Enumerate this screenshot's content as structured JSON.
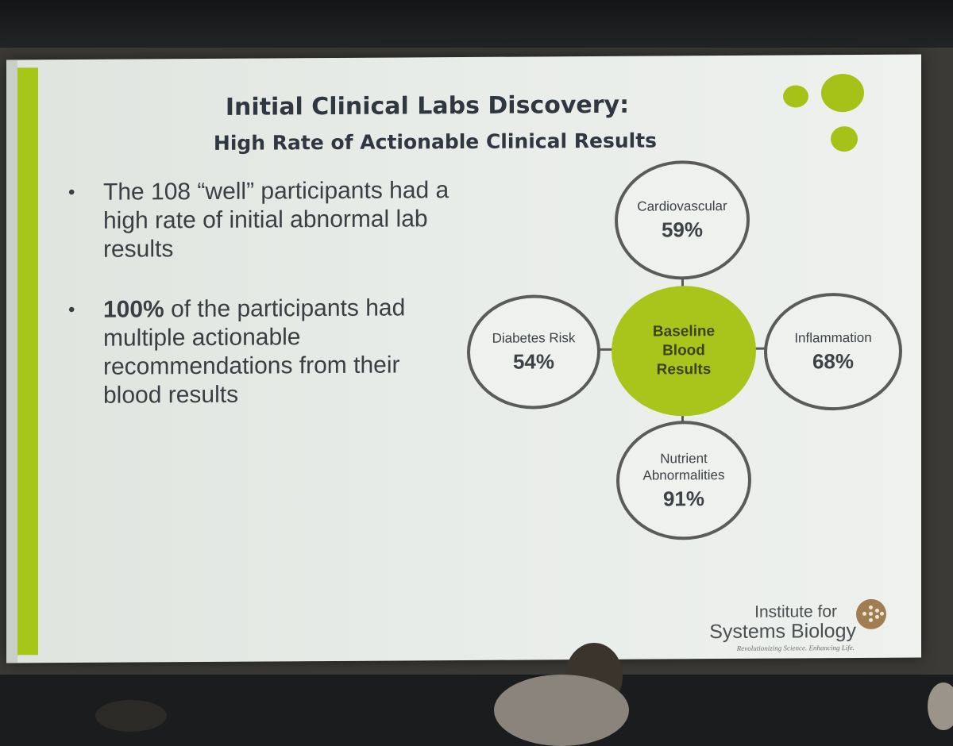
{
  "slide": {
    "title": "Initial Clinical Labs Discovery:",
    "subtitle": "High Rate of Actionable Clinical Results",
    "bullets": [
      {
        "text": "The 108 “well” participants had a high rate of initial abnormal lab results"
      },
      {
        "bold": "100%",
        "text": " of the participants had multiple actionable recommendations from their blood results"
      }
    ],
    "bullet_char": "•",
    "diagram": {
      "center": "Baseline Blood Results",
      "nodes": [
        {
          "label": "Cardiovascular",
          "value": "59%"
        },
        {
          "label": "Diabetes Risk",
          "value": "54%"
        },
        {
          "label": "Inflammation",
          "value": "68%"
        },
        {
          "label": "Nutrient Abnormalities",
          "value": "91%"
        }
      ]
    },
    "logo": {
      "line1": "Institute for",
      "line2": "Systems Biology",
      "tagline": "Revolutionizing Science. Enhancing Life."
    }
  },
  "colors": {
    "accent_green": "#a4c617",
    "title_text": "#2f3740",
    "body_text": "#3a3f44",
    "circle_border": "#5b5b5b",
    "logo_brown": "#a07d52"
  }
}
